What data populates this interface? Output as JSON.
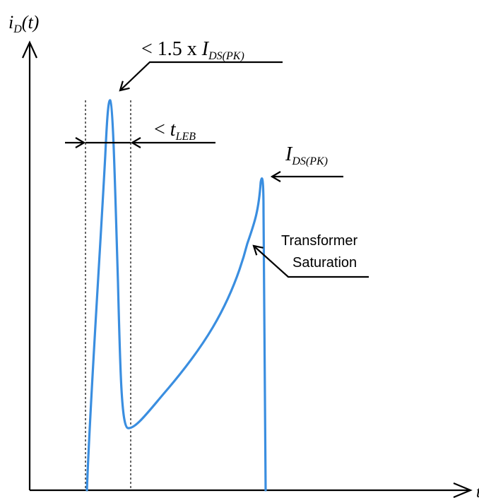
{
  "axes": {
    "y_label": {
      "main": "i",
      "sub": "D",
      "rest": "(t)"
    },
    "x_label_fragment": "t"
  },
  "annotations": {
    "peak_spike": {
      "prefix": "< 1.5 x ",
      "main": "I",
      "sub": "DS(PK)"
    },
    "blanking": {
      "prefix": "< ",
      "main": "t",
      "sub": "LEB"
    },
    "current_peak": {
      "main": "I",
      "sub": "DS(PK)"
    },
    "saturation": {
      "line1": "Transformer",
      "line2": "Saturation"
    }
  },
  "colors": {
    "waveform": "#3a8ee0",
    "ink": "#000000",
    "guide": "#333333"
  }
}
